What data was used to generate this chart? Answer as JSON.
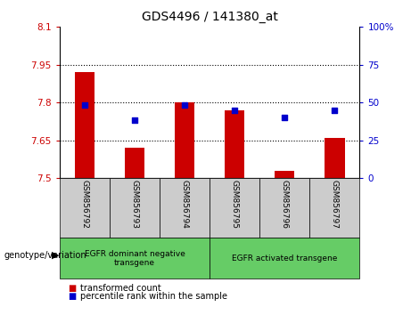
{
  "title": "GDS4496 / 141380_at",
  "samples": [
    "GSM856792",
    "GSM856793",
    "GSM856794",
    "GSM856795",
    "GSM856796",
    "GSM856797"
  ],
  "bar_values": [
    7.92,
    7.62,
    7.8,
    7.77,
    7.53,
    7.66
  ],
  "bar_bottom": 7.5,
  "percentile_values": [
    48,
    38,
    48,
    45,
    40,
    45
  ],
  "ylim_left": [
    7.5,
    8.1
  ],
  "ylim_right": [
    0,
    100
  ],
  "yticks_left": [
    7.5,
    7.65,
    7.8,
    7.95,
    8.1
  ],
  "yticks_right": [
    0,
    25,
    50,
    75,
    100
  ],
  "bar_color": "#CC0000",
  "dot_color": "#0000CC",
  "group1_label": "EGFR dominant negative\ntransgene",
  "group2_label": "EGFR activated transgene",
  "group1_count": 3,
  "group2_count": 3,
  "legend_bar_label": "transformed count",
  "legend_dot_label": "percentile rank within the sample",
  "xlabel_left": "genotype/variation",
  "background_color": "#ffffff",
  "tick_bg_color": "#cccccc",
  "group_bg_color": "#66CC66",
  "title_fontsize": 10
}
